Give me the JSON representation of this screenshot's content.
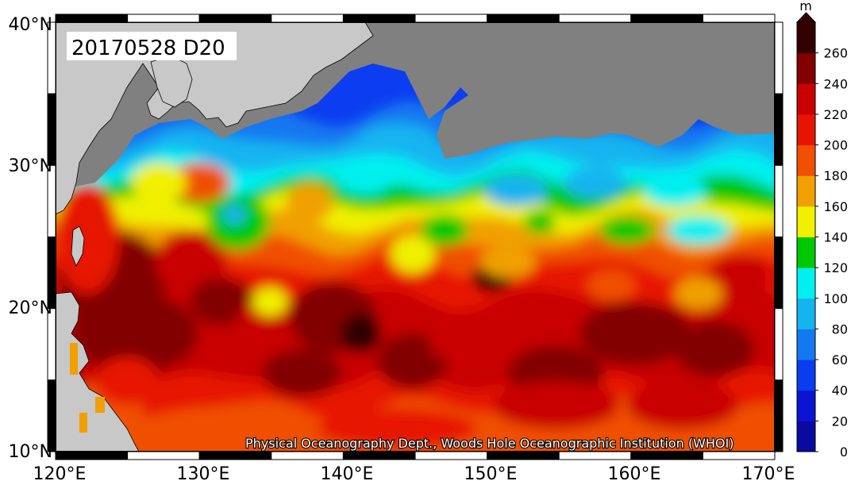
{
  "map": {
    "title": "20170528 D20",
    "credit": "Physical Oceanography Dept., Woods Hole Oceanographic Institution (WHOI)",
    "lon_labels": [
      "120°E",
      "130°E",
      "140°E",
      "150°E",
      "160°E",
      "170°E"
    ],
    "lat_labels": [
      "40°N",
      "30°N",
      "20°N",
      "10°N"
    ]
  },
  "colorbar": {
    "unit": "m",
    "tick_labels": [
      "0",
      "20",
      "40",
      "60",
      "80",
      "100",
      "120",
      "140",
      "160",
      "180",
      "200",
      "220",
      "240",
      "260"
    ],
    "colors": [
      "#0a0aa0",
      "#0a14d2",
      "#0a3cf0",
      "#1478f0",
      "#14b4f0",
      "#00f0f0",
      "#00c800",
      "#f0f000",
      "#f0a000",
      "#f05000",
      "#e61400",
      "#c80000",
      "#820000",
      "#320000"
    ]
  },
  "colors": {
    "land": "#c8c8c8",
    "no_data": "#808080",
    "frame": "#000000"
  }
}
